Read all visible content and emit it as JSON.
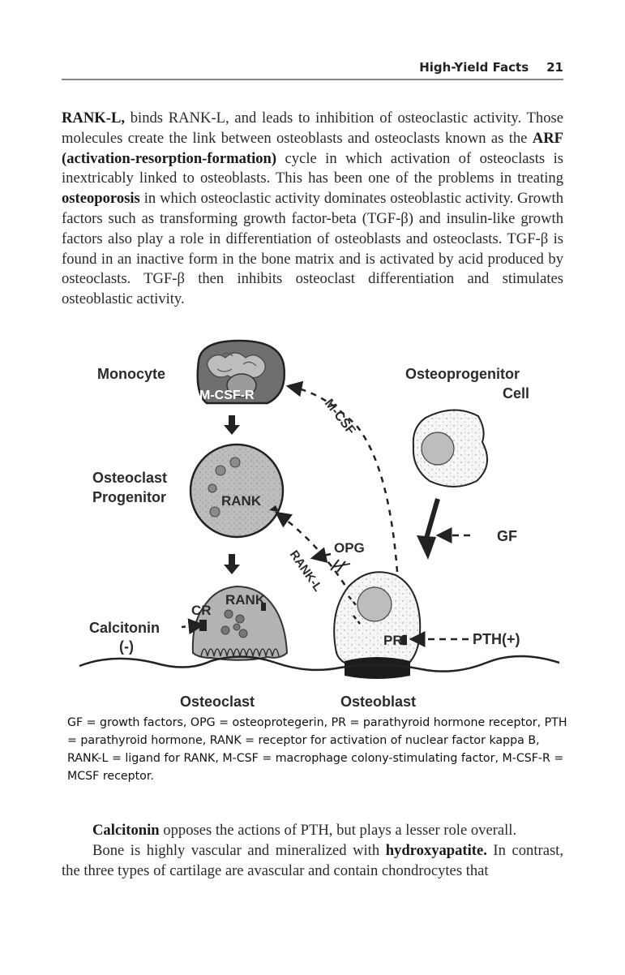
{
  "header": {
    "running_title": "High-Yield Facts",
    "page_number": "21"
  },
  "para1": {
    "s1": "RANK-L,",
    "s2": " binds RANK-L, and leads to inhibition of osteoclastic activity. Those molecules create the link between osteoblasts and osteoclasts known as the ",
    "s3": "ARF (activation-resorption-formation)",
    "s4": " cycle in which activation of osteoclasts is inextricably linked to osteoblasts. This has been one of the problems in treating ",
    "s5": "osteoporosis",
    "s6": " in which osteoclastic activity dominates osteoblastic activity. Growth factors such as transforming growth factor-beta (TGF-β) and insulin-like growth factors also play a role in differentiation of osteoblasts and osteoclasts. TGF-β is found in an inactive form in the bone matrix and is activated by acid produced by osteoclasts. TGF-β then inhibits osteoclast differentiation and stimulates osteoblastic activity."
  },
  "figure": {
    "monocyte": "Monocyte",
    "mcsf_r": "M-CSF-R",
    "mcsf": "M-CSF",
    "osteoprogenitor_line1": "Osteoprogenitor",
    "osteoprogenitor_line2": "Cell",
    "osteoclast_progenitor_line1": "Osteoclast",
    "osteoclast_progenitor_line2": "Progenitor",
    "rank": "RANK",
    "opg": "OPG",
    "rank_l": "RANK-L",
    "gf": "GF",
    "cr": "CR",
    "rank2": "RANK",
    "calcitonin": "Calcitonin",
    "calcitonin_sign": "(-)",
    "pr": "PR",
    "pth": "PTH(+)",
    "osteoclast": "Osteoclast",
    "osteoblast": "Osteoblast"
  },
  "caption": "GF = growth factors, OPG = osteoprotegerin, PR = parathyroid hormone receptor, PTH = parathyroid hormone, RANK = receptor for activation of nuclear factor kappa B, RANK-L = ligand for RANK, M-CSF = macrophage colony-stimulating factor, M-CSF-R = MCSF receptor.",
  "para2": {
    "s1": "Calcitonin",
    "s2": " opposes the actions of PTH, but plays a lesser role overall."
  },
  "para3": {
    "s1": "Bone is highly vascular and mineralized with ",
    "s2": "hydroxyapatite.",
    "s3": " In contrast, the three types of cartilage are avascular and contain chondrocytes that"
  }
}
